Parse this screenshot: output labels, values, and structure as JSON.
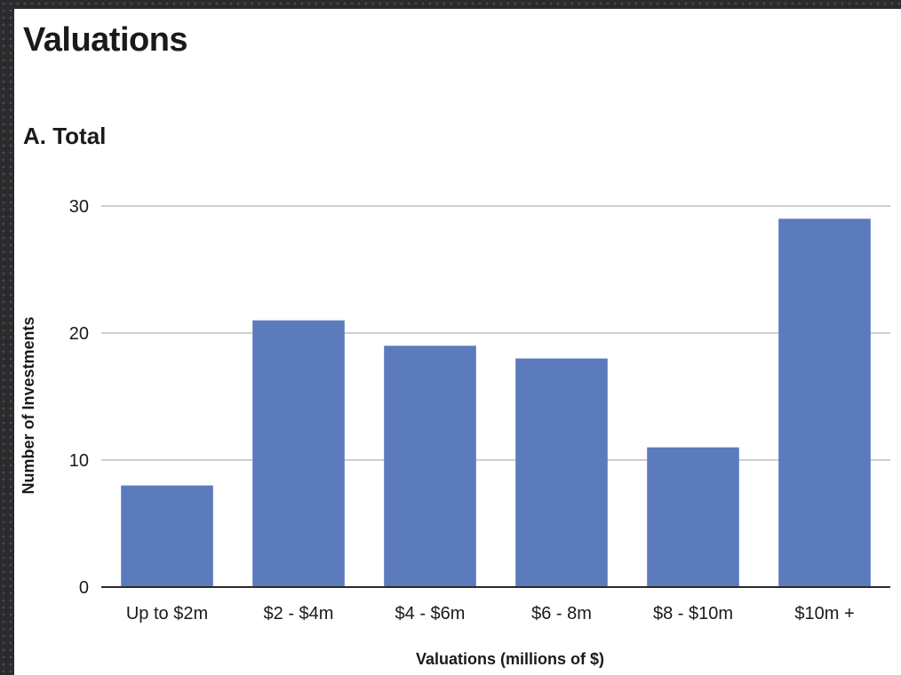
{
  "header": {
    "title": "Valuations"
  },
  "chart_data": {
    "type": "bar",
    "title": "A. Total",
    "categories": [
      "Up to $2m",
      "$2 - $4m",
      "$4 - $6m",
      "$6 - 8m",
      "$8 - $10m",
      "$10m +"
    ],
    "values": [
      8,
      21,
      19,
      18,
      11,
      29
    ],
    "xlabel": "Valuations (millions of $)",
    "ylabel": "Number of Investments",
    "ylim": [
      0,
      30
    ],
    "yticks": [
      0,
      10,
      20,
      30
    ],
    "grid": true,
    "colors": {
      "bar": "#5b7bbd",
      "grid": "#bfbfbf",
      "axis": "#2a2a2a"
    }
  }
}
